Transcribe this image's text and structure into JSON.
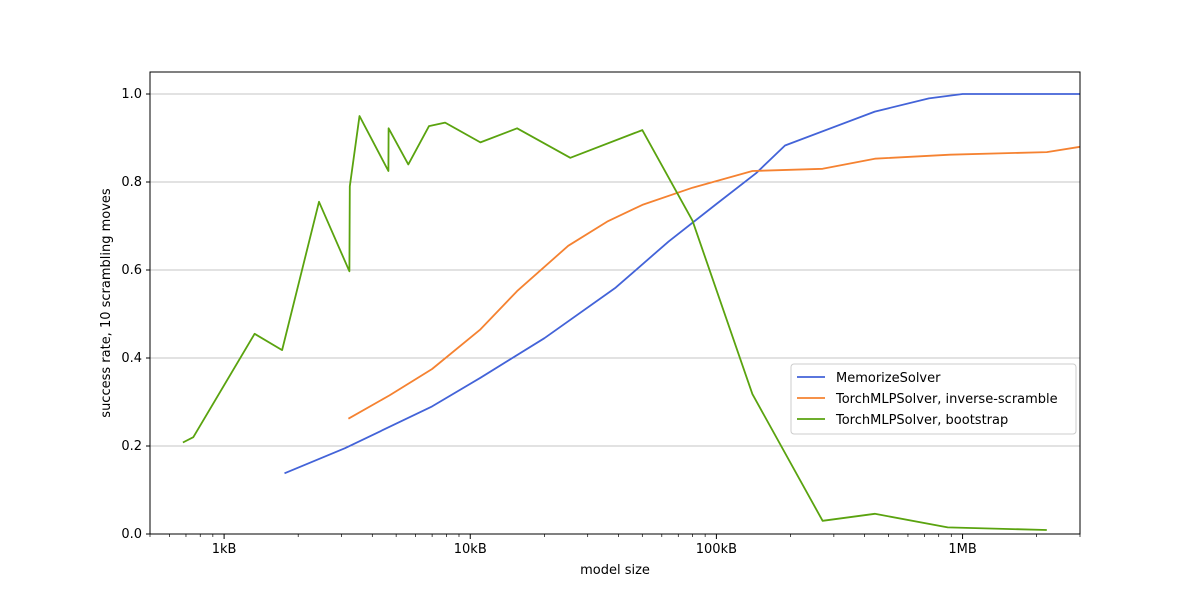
{
  "chart_data": {
    "type": "line",
    "title": "",
    "xlabel": "model size",
    "ylabel": "success rate, 10 scrambling moves",
    "xscale": "log",
    "xlim": [
      500,
      3000000
    ],
    "ylim": [
      0,
      1.05
    ],
    "x_ticks": [
      {
        "value": 1000,
        "label": "1kB"
      },
      {
        "value": 10000,
        "label": "10kB"
      },
      {
        "value": 100000,
        "label": "100kB"
      },
      {
        "value": 1000000,
        "label": "1MB"
      }
    ],
    "y_ticks": [
      {
        "value": 0.0,
        "label": "0.0"
      },
      {
        "value": 0.2,
        "label": "0.2"
      },
      {
        "value": 0.4,
        "label": "0.4"
      },
      {
        "value": 0.6,
        "label": "0.6"
      },
      {
        "value": 0.8,
        "label": "0.8"
      },
      {
        "value": 1.0,
        "label": "1.0"
      }
    ],
    "grid": "horizontal",
    "legend_position": "center-right",
    "series": [
      {
        "name": "MemorizeSolver",
        "color": "#4363d8",
        "x": [
          1760,
          3100,
          7000,
          11000,
          20000,
          39000,
          64000,
          100000,
          145000,
          190000,
          440000,
          730000,
          1000000,
          1450000,
          2100000,
          3000000
        ],
        "y": [
          0.138,
          0.195,
          0.29,
          0.355,
          0.445,
          0.56,
          0.665,
          0.75,
          0.82,
          0.883,
          0.96,
          0.99,
          1.0,
          1.0,
          1.0,
          1.0
        ]
      },
      {
        "name": "TorchMLPSolver, inverse-scramble",
        "color": "#f58231",
        "x": [
          3200,
          4700,
          7000,
          11000,
          15500,
          25000,
          36000,
          50000,
          80000,
          140000,
          270000,
          440000,
          890000,
          2200000,
          3000000
        ],
        "y": [
          0.262,
          0.315,
          0.375,
          0.465,
          0.552,
          0.655,
          0.71,
          0.748,
          0.787,
          0.825,
          0.83,
          0.853,
          0.862,
          0.868,
          0.88
        ]
      },
      {
        "name": "TorchMLPSolver, bootstrap",
        "color": "#5aa30f",
        "x": [
          680,
          750,
          1330,
          1720,
          2430,
          3230,
          3240,
          3550,
          4650,
          4660,
          5600,
          6800,
          7900,
          11000,
          15500,
          25500,
          50000,
          80000,
          140000,
          270000,
          440000,
          870000,
          2200000
        ],
        "y": [
          0.208,
          0.22,
          0.455,
          0.418,
          0.755,
          0.597,
          0.79,
          0.95,
          0.825,
          0.922,
          0.84,
          0.927,
          0.935,
          0.89,
          0.922,
          0.855,
          0.918,
          0.712,
          0.318,
          0.03,
          0.046,
          0.015,
          0.009
        ]
      }
    ]
  }
}
